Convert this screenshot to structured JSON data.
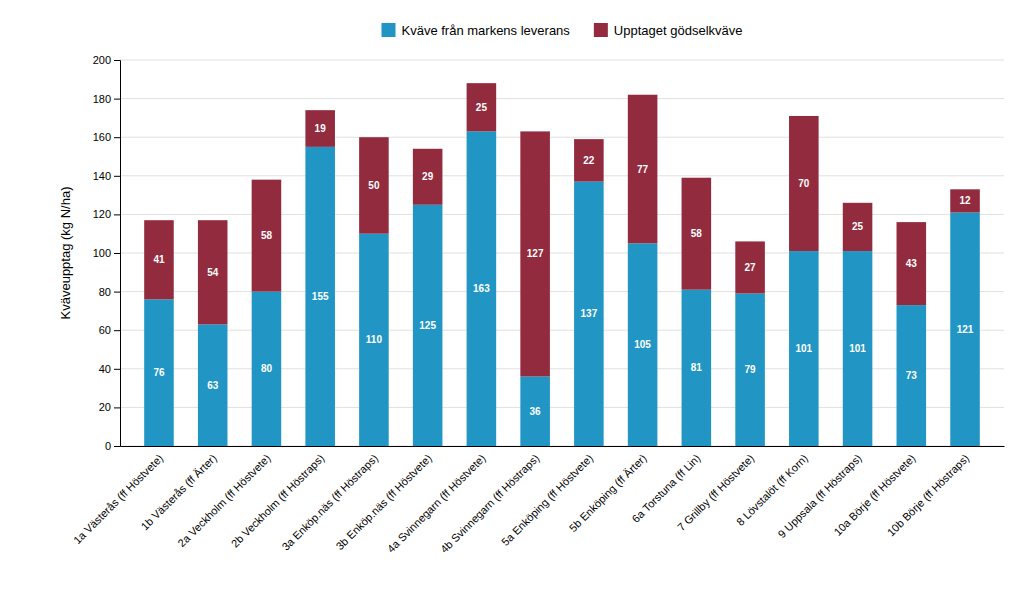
{
  "chart_data": {
    "type": "bar",
    "stacked": true,
    "categories": [
      "1a Västerås (ff Höstvete)",
      "1b Västerås (ff Ärter)",
      "2a Veckholm (ff Höstvete)",
      "2b Veckholm (ff Höstraps)",
      "3a Enköp.näs (ff Höstraps)",
      "3b Enköp.näs (ff Höstvete)",
      "4a Svinnegarn (ff Höstvete)",
      "4b Svinnegarn (ff Höstraps)",
      "5a Enköping (ff Höstvete)",
      "5b Enköping (ff Ärter)",
      "6a Torstuna (ff Lin)",
      "7 Grillby (ff Höstvete)",
      "8 Lövstalöt (ff Korn)",
      "9 Uppsala (ff Höstraps)",
      "10a Börje (ff Höstvete)",
      "10b Börje (ff Höstraps)"
    ],
    "series": [
      {
        "name": "Kväve från markens leverans",
        "color": "#2196C4",
        "values": [
          76,
          63,
          80,
          155,
          110,
          125,
          163,
          36,
          137,
          105,
          81,
          79,
          101,
          101,
          73,
          121
        ]
      },
      {
        "name": "Upptaget gödselkväve",
        "color": "#922B3E",
        "values": [
          41,
          54,
          58,
          19,
          50,
          29,
          25,
          127,
          22,
          77,
          58,
          27,
          70,
          25,
          43,
          12
        ]
      }
    ],
    "ylabel": "Kväveupptag (kg N/ha)",
    "ylim": [
      0,
      200
    ],
    "yticks": [
      0,
      20,
      40,
      60,
      80,
      100,
      120,
      140,
      160,
      180,
      200
    ],
    "grid": true,
    "legend": "top",
    "data_labels": true
  }
}
